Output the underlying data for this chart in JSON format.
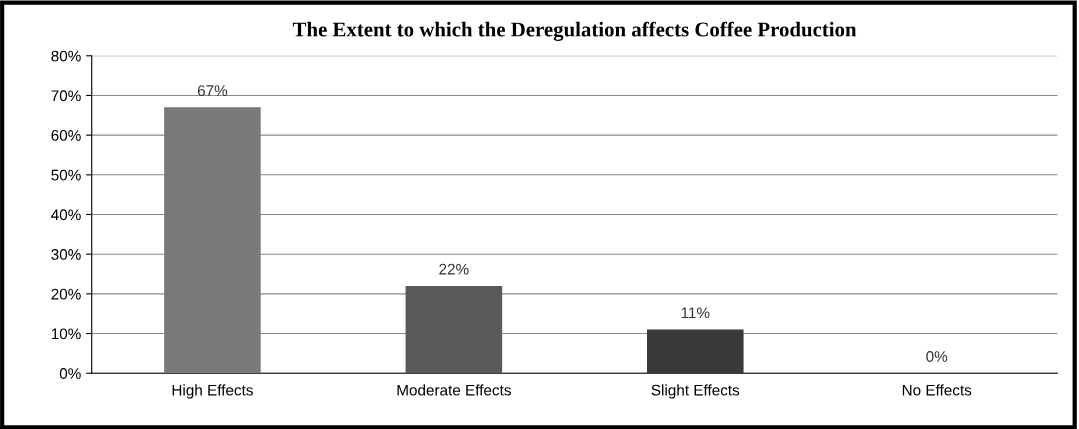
{
  "chart_data": {
    "type": "bar",
    "title": "The Extent to which the Deregulation affects Coffee Production",
    "categories": [
      "High Effects",
      "Moderate Effects",
      "Slight Effects",
      "No Effects"
    ],
    "values": [
      67,
      22,
      11,
      0
    ],
    "colors": [
      "#7a7a7a",
      "#5a5a5a",
      "#3a3a3a",
      "#3a3a3a"
    ],
    "value_labels": [
      "67%",
      "22%",
      "11%",
      "0%"
    ],
    "ylim": [
      0,
      80
    ],
    "yticks": [
      {
        "value": 0,
        "label": "0%"
      },
      {
        "value": 10,
        "label": "10%"
      },
      {
        "value": 20,
        "label": "20%"
      },
      {
        "value": 30,
        "label": "30%"
      },
      {
        "value": 40,
        "label": "40%"
      },
      {
        "value": 50,
        "label": "50%"
      },
      {
        "value": 60,
        "label": "60%"
      },
      {
        "value": 70,
        "label": "70%"
      },
      {
        "value": 80,
        "label": "80%"
      }
    ],
    "grid": "y",
    "legend": false
  }
}
